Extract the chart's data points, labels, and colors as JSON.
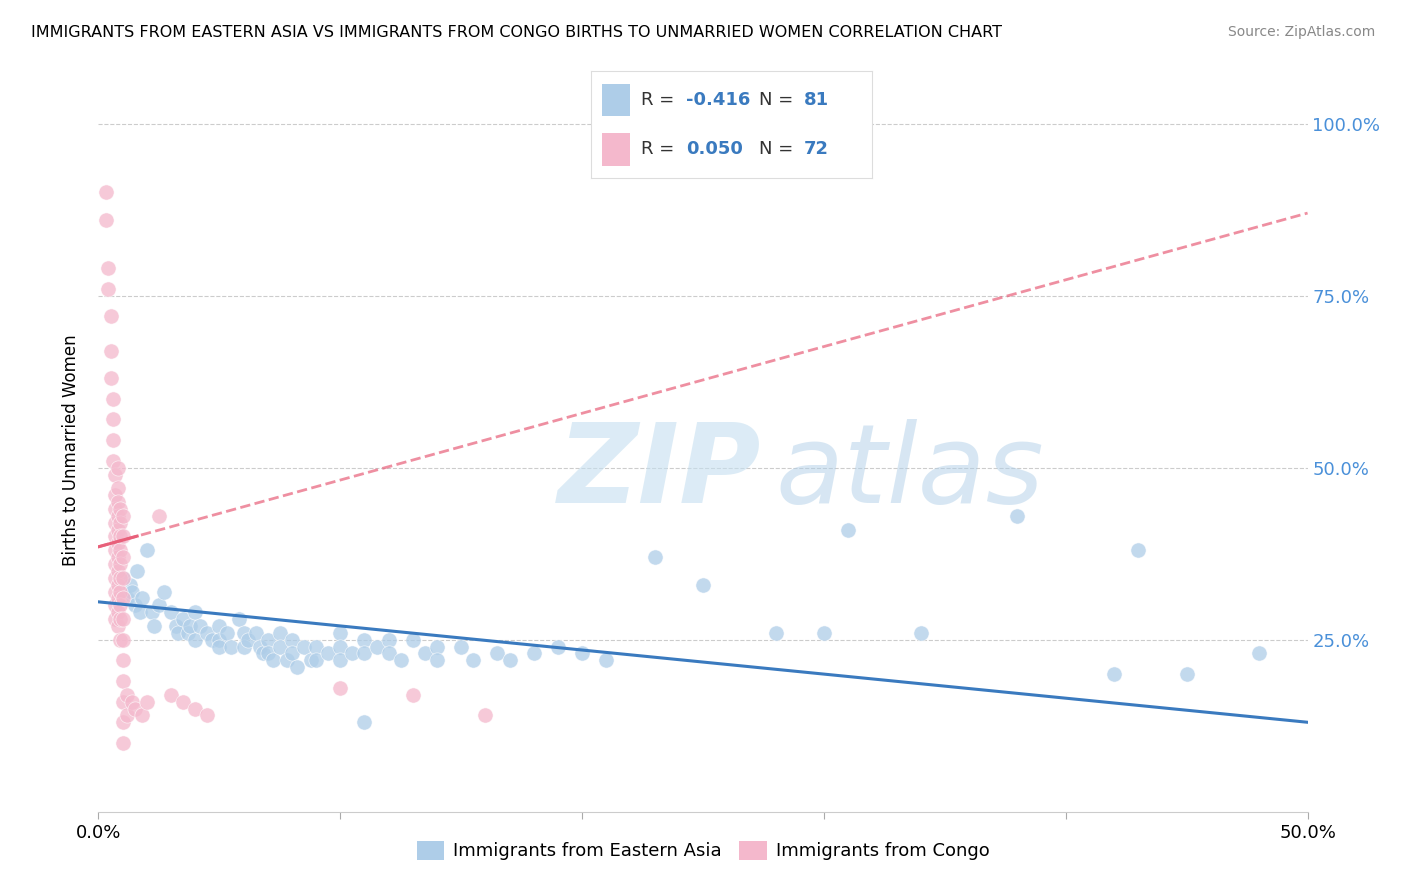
{
  "title": "IMMIGRANTS FROM EASTERN ASIA VS IMMIGRANTS FROM CONGO BIRTHS TO UNMARRIED WOMEN CORRELATION CHART",
  "source": "Source: ZipAtlas.com",
  "ylabel": "Births to Unmarried Women",
  "yticks": [
    0.0,
    0.25,
    0.5,
    0.75,
    1.0
  ],
  "ytick_labels": [
    "",
    "25.0%",
    "50.0%",
    "75.0%",
    "100.0%"
  ],
  "xlim": [
    0.0,
    0.5
  ],
  "ylim": [
    0.0,
    1.05
  ],
  "blue_color": "#aecde8",
  "pink_color": "#f4b8cc",
  "blue_line_color": "#3a7abf",
  "pink_line_color": "#e8607a",
  "blue_scatter": [
    [
      0.01,
      0.34
    ],
    [
      0.012,
      0.31
    ],
    [
      0.013,
      0.33
    ],
    [
      0.014,
      0.32
    ],
    [
      0.015,
      0.3
    ],
    [
      0.016,
      0.35
    ],
    [
      0.017,
      0.29
    ],
    [
      0.018,
      0.31
    ],
    [
      0.02,
      0.38
    ],
    [
      0.022,
      0.29
    ],
    [
      0.023,
      0.27
    ],
    [
      0.025,
      0.3
    ],
    [
      0.027,
      0.32
    ],
    [
      0.03,
      0.29
    ],
    [
      0.032,
      0.27
    ],
    [
      0.033,
      0.26
    ],
    [
      0.035,
      0.28
    ],
    [
      0.037,
      0.26
    ],
    [
      0.038,
      0.27
    ],
    [
      0.04,
      0.29
    ],
    [
      0.04,
      0.25
    ],
    [
      0.042,
      0.27
    ],
    [
      0.045,
      0.26
    ],
    [
      0.047,
      0.25
    ],
    [
      0.05,
      0.27
    ],
    [
      0.05,
      0.25
    ],
    [
      0.05,
      0.24
    ],
    [
      0.053,
      0.26
    ],
    [
      0.055,
      0.24
    ],
    [
      0.058,
      0.28
    ],
    [
      0.06,
      0.26
    ],
    [
      0.06,
      0.24
    ],
    [
      0.062,
      0.25
    ],
    [
      0.065,
      0.26
    ],
    [
      0.067,
      0.24
    ],
    [
      0.068,
      0.23
    ],
    [
      0.07,
      0.25
    ],
    [
      0.07,
      0.23
    ],
    [
      0.072,
      0.22
    ],
    [
      0.075,
      0.26
    ],
    [
      0.075,
      0.24
    ],
    [
      0.078,
      0.22
    ],
    [
      0.08,
      0.25
    ],
    [
      0.08,
      0.23
    ],
    [
      0.082,
      0.21
    ],
    [
      0.085,
      0.24
    ],
    [
      0.088,
      0.22
    ],
    [
      0.09,
      0.24
    ],
    [
      0.09,
      0.22
    ],
    [
      0.095,
      0.23
    ],
    [
      0.1,
      0.26
    ],
    [
      0.1,
      0.24
    ],
    [
      0.1,
      0.22
    ],
    [
      0.105,
      0.23
    ],
    [
      0.11,
      0.25
    ],
    [
      0.11,
      0.23
    ],
    [
      0.11,
      0.13
    ],
    [
      0.115,
      0.24
    ],
    [
      0.12,
      0.25
    ],
    [
      0.12,
      0.23
    ],
    [
      0.125,
      0.22
    ],
    [
      0.13,
      0.25
    ],
    [
      0.135,
      0.23
    ],
    [
      0.14,
      0.24
    ],
    [
      0.14,
      0.22
    ],
    [
      0.15,
      0.24
    ],
    [
      0.155,
      0.22
    ],
    [
      0.165,
      0.23
    ],
    [
      0.17,
      0.22
    ],
    [
      0.18,
      0.23
    ],
    [
      0.19,
      0.24
    ],
    [
      0.2,
      0.23
    ],
    [
      0.21,
      0.22
    ],
    [
      0.23,
      0.37
    ],
    [
      0.25,
      0.33
    ],
    [
      0.28,
      0.26
    ],
    [
      0.3,
      0.26
    ],
    [
      0.31,
      0.41
    ],
    [
      0.34,
      0.26
    ],
    [
      0.38,
      0.43
    ],
    [
      0.42,
      0.2
    ],
    [
      0.43,
      0.38
    ],
    [
      0.45,
      0.2
    ],
    [
      0.48,
      0.23
    ]
  ],
  "pink_scatter": [
    [
      0.003,
      0.9
    ],
    [
      0.003,
      0.86
    ],
    [
      0.004,
      0.79
    ],
    [
      0.004,
      0.76
    ],
    [
      0.005,
      0.72
    ],
    [
      0.005,
      0.67
    ],
    [
      0.005,
      0.63
    ],
    [
      0.006,
      0.6
    ],
    [
      0.006,
      0.57
    ],
    [
      0.006,
      0.54
    ],
    [
      0.006,
      0.51
    ],
    [
      0.007,
      0.49
    ],
    [
      0.007,
      0.46
    ],
    [
      0.007,
      0.44
    ],
    [
      0.007,
      0.42
    ],
    [
      0.007,
      0.4
    ],
    [
      0.007,
      0.38
    ],
    [
      0.007,
      0.36
    ],
    [
      0.007,
      0.34
    ],
    [
      0.007,
      0.32
    ],
    [
      0.007,
      0.3
    ],
    [
      0.007,
      0.28
    ],
    [
      0.008,
      0.5
    ],
    [
      0.008,
      0.47
    ],
    [
      0.008,
      0.45
    ],
    [
      0.008,
      0.43
    ],
    [
      0.008,
      0.41
    ],
    [
      0.008,
      0.39
    ],
    [
      0.008,
      0.37
    ],
    [
      0.008,
      0.35
    ],
    [
      0.008,
      0.33
    ],
    [
      0.008,
      0.31
    ],
    [
      0.008,
      0.29
    ],
    [
      0.008,
      0.27
    ],
    [
      0.009,
      0.44
    ],
    [
      0.009,
      0.42
    ],
    [
      0.009,
      0.4
    ],
    [
      0.009,
      0.38
    ],
    [
      0.009,
      0.36
    ],
    [
      0.009,
      0.34
    ],
    [
      0.009,
      0.32
    ],
    [
      0.009,
      0.3
    ],
    [
      0.009,
      0.28
    ],
    [
      0.009,
      0.25
    ],
    [
      0.01,
      0.43
    ],
    [
      0.01,
      0.4
    ],
    [
      0.01,
      0.37
    ],
    [
      0.01,
      0.34
    ],
    [
      0.01,
      0.31
    ],
    [
      0.01,
      0.28
    ],
    [
      0.01,
      0.25
    ],
    [
      0.01,
      0.22
    ],
    [
      0.01,
      0.19
    ],
    [
      0.01,
      0.16
    ],
    [
      0.01,
      0.13
    ],
    [
      0.01,
      0.1
    ],
    [
      0.012,
      0.17
    ],
    [
      0.012,
      0.14
    ],
    [
      0.014,
      0.16
    ],
    [
      0.015,
      0.15
    ],
    [
      0.018,
      0.14
    ],
    [
      0.02,
      0.16
    ],
    [
      0.025,
      0.43
    ],
    [
      0.03,
      0.17
    ],
    [
      0.035,
      0.16
    ],
    [
      0.04,
      0.15
    ],
    [
      0.045,
      0.14
    ],
    [
      0.1,
      0.18
    ],
    [
      0.13,
      0.17
    ],
    [
      0.16,
      0.14
    ]
  ],
  "blue_trend": [
    -0.416,
    0.302,
    0.0,
    0.5
  ],
  "pink_trend_solid": [
    0.05,
    0.37,
    0.0,
    0.016
  ],
  "pink_trend_dashed": [
    0.05,
    0.37,
    0.0,
    0.5
  ]
}
